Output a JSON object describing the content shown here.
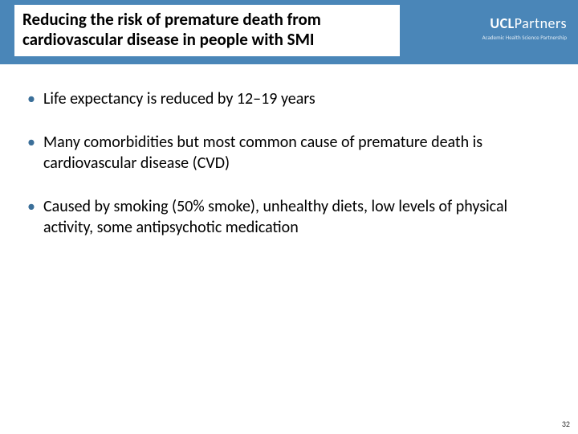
{
  "header": {
    "title": "Reducing the risk of premature death from cardiovascular disease in people with SMI",
    "bar_color": "#4a86b8",
    "title_fontsize": 21,
    "title_color": "#000000"
  },
  "logo": {
    "text_prefix": "UCL",
    "text_suffix": "Partners",
    "tagline": "Academic Health Science Partnership",
    "color": "#ffffff"
  },
  "bullets": [
    "Life expectancy is reduced by 12–19 years",
    "Many comorbidities but most common cause of premature death is cardiovascular disease (CVD)",
    "Caused by smoking (50% smoke), unhealthy diets, low levels of physical activity, some antipsychotic medication"
  ],
  "body": {
    "fontsize": 20,
    "bullet_color": "#3b6f99",
    "text_color": "#000000"
  },
  "page_number": "32",
  "background_color": "#ffffff"
}
